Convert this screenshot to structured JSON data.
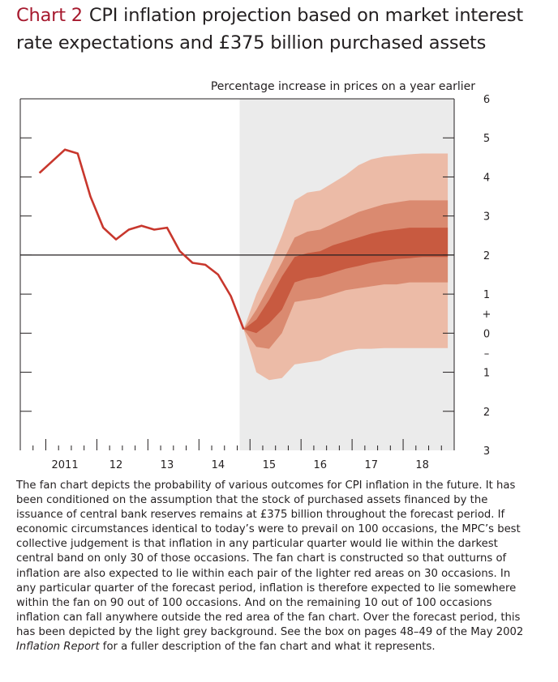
{
  "title": {
    "number": "Chart 2",
    "lines": [
      "CPI inflation projection based on market interest",
      "rate expectations and £375 billion purchased assets"
    ]
  },
  "subtitle": "Percentage increase in prices on a year earlier",
  "caption_lines": [
    "The fan chart depicts the probability of various outcomes for CPI inflation in the future.  It has",
    "been conditioned on the assumption that the stock of purchased assets financed by the",
    "issuance of central bank reserves remains at £375 billion throughout the forecast period.  If",
    "economic circumstances identical to today’s were to prevail on 100 occasions, the MPC’s best",
    "collective judgement is that inflation in any particular quarter would lie within the darkest",
    "central band on only 30 of those occasions.  The fan chart is constructed so that outturns of",
    "inflation are also expected to lie within each pair of the lighter red areas on 30 occasions.  In",
    "any particular quarter of the forecast period, inflation is therefore expected to lie somewhere",
    "within the fan on 90 out of 100 occasions.  And on the remaining 10 out of 100 occasions",
    "inflation can fall anywhere outside the red area of the fan chart.  Over the forecast period, this",
    "has been depicted by the light grey background.  See the box on pages 48–49 of the May 2002"
  ],
  "caption_last": {
    "italic": "Inflation Report",
    "rest": " for a fuller description of the fan chart and what it represents."
  },
  "chart_data": {
    "type": "area",
    "x_axis": {
      "unit": "quarter",
      "start": "2010 Q3",
      "end": "2018 Q4",
      "labels": [
        {
          "quarter": "2011 Q2",
          "text": "2011"
        },
        {
          "quarter": "2012 Q2",
          "text": "12"
        },
        {
          "quarter": "2013 Q2",
          "text": "13"
        },
        {
          "quarter": "2014 Q2",
          "text": "14"
        },
        {
          "quarter": "2015 Q2",
          "text": "15"
        },
        {
          "quarter": "2016 Q2",
          "text": "16"
        },
        {
          "quarter": "2017 Q2",
          "text": "17"
        },
        {
          "quarter": "2018 Q2",
          "text": "18"
        }
      ]
    },
    "y_axis": {
      "ylim": [
        -3,
        6
      ],
      "tick_labels": [
        {
          "value": 6,
          "text": "6"
        },
        {
          "value": 5,
          "text": "5"
        },
        {
          "value": 4,
          "text": "4"
        },
        {
          "value": 3,
          "text": "3"
        },
        {
          "value": 2,
          "text": "2"
        },
        {
          "value": 1,
          "text": "1"
        },
        {
          "value": 0,
          "text": "0"
        },
        {
          "value": -1,
          "text": "1"
        },
        {
          "value": -2,
          "text": "2"
        },
        {
          "value": -3,
          "text": "3"
        }
      ],
      "sign_markers": {
        "plus": "+",
        "minus": "–"
      }
    },
    "target_line": 2.0,
    "forecast_start": "2014 Q4",
    "outturn": [
      {
        "q": "2010 Q4",
        "v": 4.1
      },
      {
        "q": "2011 Q1",
        "v": 4.4
      },
      {
        "q": "2011 Q2",
        "v": 4.7
      },
      {
        "q": "2011 Q3",
        "v": 4.6
      },
      {
        "q": "2011 Q4",
        "v": 3.5
      },
      {
        "q": "2012 Q1",
        "v": 2.7
      },
      {
        "q": "2012 Q2",
        "v": 2.4
      },
      {
        "q": "2012 Q3",
        "v": 2.65
      },
      {
        "q": "2012 Q4",
        "v": 2.75
      },
      {
        "q": "2013 Q1",
        "v": 2.65
      },
      {
        "q": "2013 Q2",
        "v": 2.7
      },
      {
        "q": "2013 Q3",
        "v": 2.1
      },
      {
        "q": "2013 Q4",
        "v": 1.8
      },
      {
        "q": "2014 Q1",
        "v": 1.75
      },
      {
        "q": "2014 Q2",
        "v": 1.5
      },
      {
        "q": "2014 Q3",
        "v": 0.95
      },
      {
        "q": "2014 Q4",
        "v": 0.1
      }
    ],
    "fan_quarters": [
      "2014 Q4",
      "2015 Q1",
      "2015 Q2",
      "2015 Q3",
      "2015 Q4",
      "2016 Q1",
      "2016 Q2",
      "2016 Q3",
      "2016 Q4",
      "2017 Q1",
      "2017 Q2",
      "2017 Q3",
      "2017 Q4",
      "2018 Q1",
      "2018 Q2",
      "2018 Q3",
      "2018 Q4"
    ],
    "fan_bands": {
      "outer_upper": [
        0.1,
        1.0,
        1.7,
        2.5,
        3.4,
        3.6,
        3.65,
        3.85,
        4.05,
        4.3,
        4.45,
        4.52,
        4.55,
        4.58,
        4.6,
        4.6,
        4.6
      ],
      "middle_upper": [
        0.1,
        0.6,
        1.2,
        1.8,
        2.45,
        2.6,
        2.65,
        2.8,
        2.95,
        3.1,
        3.2,
        3.3,
        3.35,
        3.4,
        3.4,
        3.4,
        3.4
      ],
      "inner_upper": [
        0.1,
        0.35,
        0.85,
        1.45,
        1.95,
        2.05,
        2.1,
        2.25,
        2.35,
        2.45,
        2.55,
        2.62,
        2.66,
        2.7,
        2.7,
        2.7,
        2.7
      ],
      "inner_lower": [
        0.1,
        0.0,
        0.25,
        0.6,
        1.3,
        1.4,
        1.45,
        1.55,
        1.65,
        1.72,
        1.8,
        1.85,
        1.9,
        1.92,
        1.95,
        1.95,
        1.95
      ],
      "middle_lower": [
        0.1,
        -0.35,
        -0.4,
        0.0,
        0.8,
        0.85,
        0.9,
        1.0,
        1.1,
        1.15,
        1.2,
        1.25,
        1.25,
        1.3,
        1.3,
        1.3,
        1.3
      ],
      "outer_lower": [
        0.1,
        -1.0,
        -1.2,
        -1.15,
        -0.8,
        -0.75,
        -0.7,
        -0.55,
        -0.45,
        -0.4,
        -0.4,
        -0.38,
        -0.38,
        -0.38,
        -0.38,
        -0.38,
        -0.38
      ]
    },
    "colors": {
      "outturn": "#c8372d",
      "band_outer": "#ecbba7",
      "band_middle": "#da8a70",
      "band_inner": "#c85a40",
      "forecast_background": "#ebebeb",
      "axis": "#231f20"
    },
    "grid": false,
    "legend": "none"
  }
}
